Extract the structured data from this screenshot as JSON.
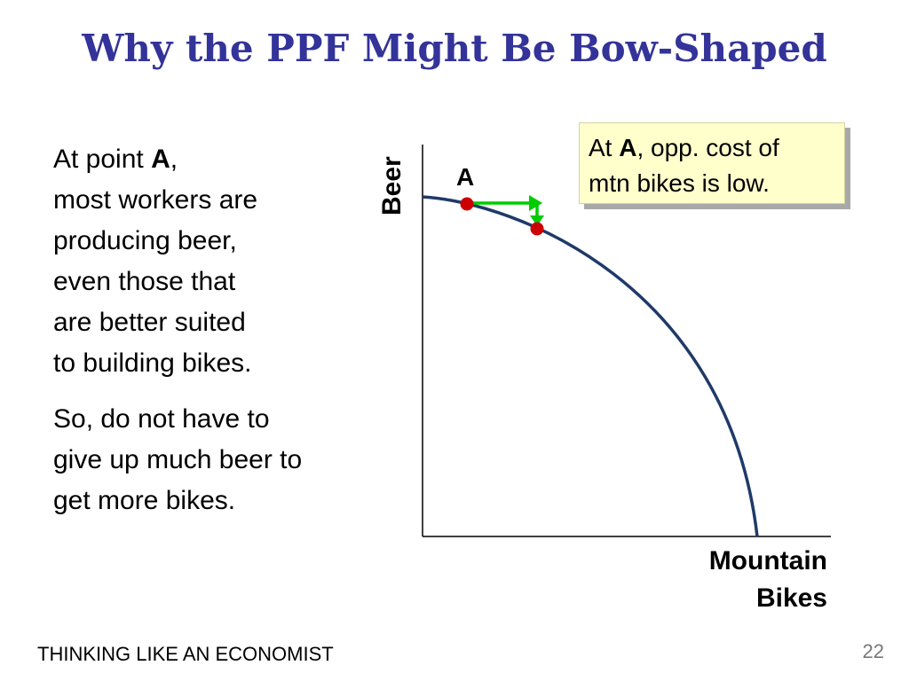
{
  "title": "Why the PPF Might Be Bow-Shaped",
  "body": {
    "para1": {
      "line1_prefix": "At point ",
      "line1_bold": "A",
      "line1_suffix": ",",
      "lines": [
        "most workers are",
        "producing beer,",
        "even those that",
        "are better suited",
        "to building bikes."
      ]
    },
    "para2": {
      "lines": [
        "So, do not have to",
        "give up much beer to",
        "get more bikes."
      ]
    }
  },
  "callout": {
    "prefix": "At ",
    "bold": "A",
    "suffix": ", opp. cost of",
    "line2": "mtn bikes is low."
  },
  "diagram": {
    "y_axis_label": "Beer",
    "x_axis_label_line1": "Mountain",
    "x_axis_label_line2": "Bikes",
    "point_label": "A",
    "colors": {
      "curve": "#1f3a68",
      "point": "#cc0000",
      "arrow": "#00cc00",
      "axis": "#000000"
    }
  },
  "footer": {
    "text": "THINKING LIKE AN ECONOMIST",
    "page_number": "22"
  }
}
